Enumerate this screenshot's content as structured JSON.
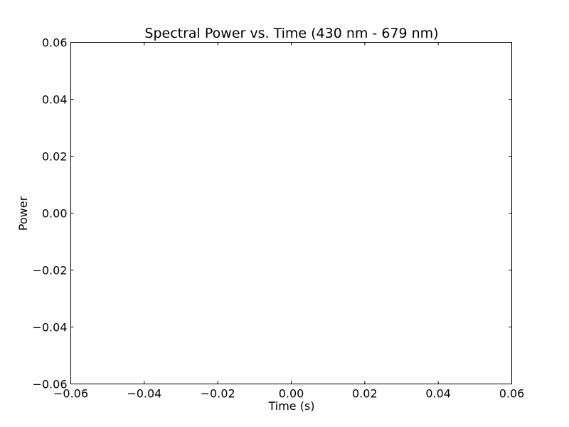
{
  "chart_data": {
    "type": "line",
    "title": "Spectral Power vs. Time (430 nm - 679 nm)",
    "xlabel": "Time (s)",
    "ylabel": "Power",
    "xlim": [
      -0.06,
      0.06
    ],
    "ylim": [
      -0.06,
      0.06
    ],
    "x_ticks": [
      -0.06,
      -0.04,
      -0.02,
      0.0,
      0.02,
      0.04,
      0.06
    ],
    "y_ticks": [
      -0.06,
      -0.04,
      -0.02,
      0.0,
      0.02,
      0.04,
      0.06
    ],
    "x_tick_labels": [
      "−0.06",
      "−0.04",
      "−0.02",
      "0.00",
      "0.02",
      "0.04",
      "0.06"
    ],
    "y_tick_labels": [
      "−0.06",
      "−0.04",
      "−0.02",
      "0.00",
      "0.02",
      "0.04",
      "0.06"
    ],
    "series": [],
    "grid": false,
    "colors": {
      "axes": "#000000",
      "background": "#ffffff"
    }
  }
}
